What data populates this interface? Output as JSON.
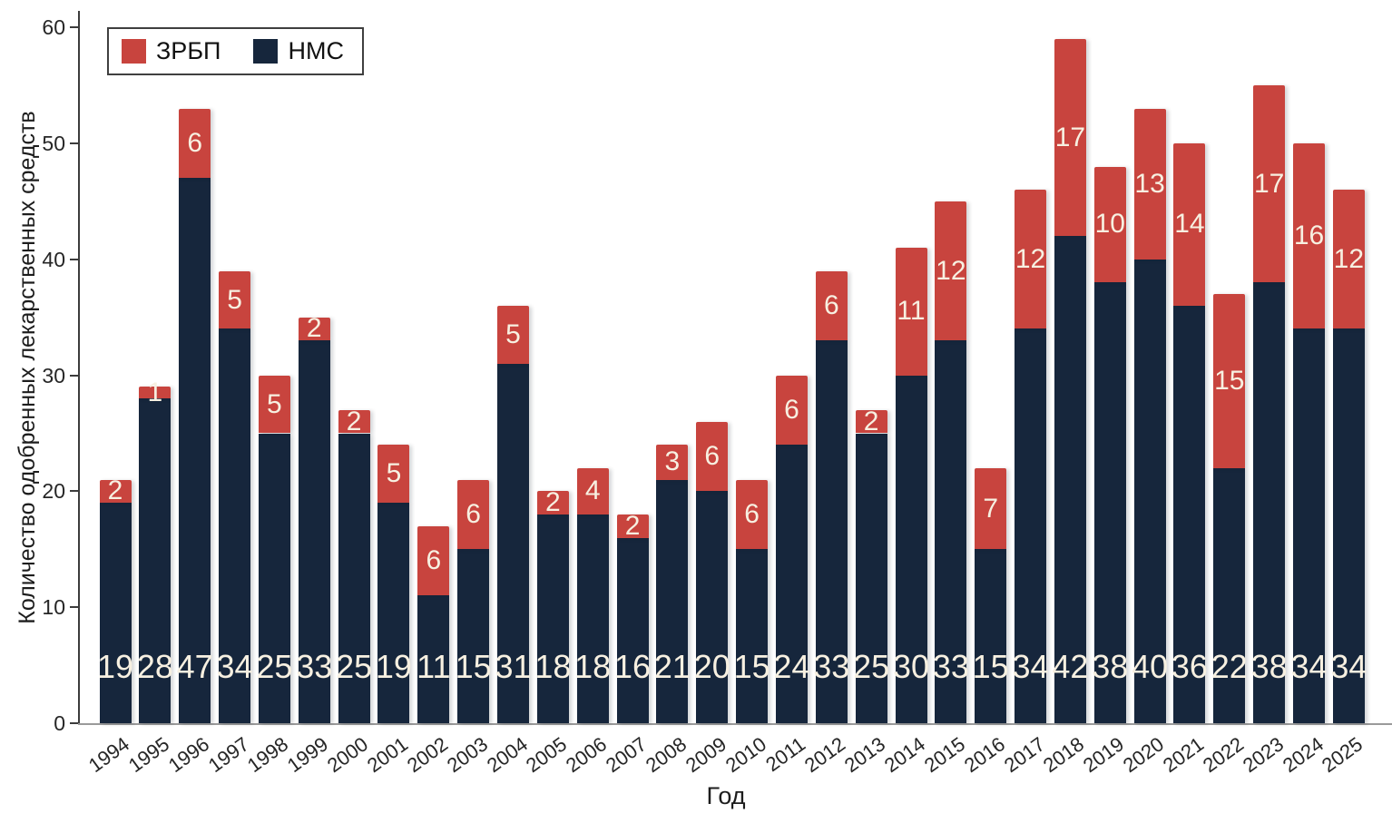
{
  "chart_data": {
    "type": "bar",
    "stacked": true,
    "title": "",
    "xlabel": "Год",
    "ylabel": "Количество одобренных лекарственных средств",
    "categories": [
      "1994",
      "1995",
      "1996",
      "1997",
      "1998",
      "1999",
      "2000",
      "2001",
      "2002",
      "2003",
      "2004",
      "2005",
      "2006",
      "2007",
      "2008",
      "2009",
      "2010",
      "2011",
      "2012",
      "2013",
      "2014",
      "2015",
      "2016",
      "2017",
      "2018",
      "2019",
      "2020",
      "2021",
      "2022",
      "2023",
      "2024",
      "2025"
    ],
    "series": [
      {
        "name": "НМС",
        "color": "#16263c",
        "values": [
          19,
          28,
          47,
          34,
          25,
          33,
          25,
          19,
          11,
          15,
          31,
          18,
          18,
          16,
          21,
          20,
          15,
          24,
          33,
          25,
          30,
          33,
          15,
          34,
          42,
          38,
          40,
          36,
          22,
          38,
          34,
          34
        ]
      },
      {
        "name": "ЗРБП",
        "color": "#c8443e",
        "values": [
          2,
          1,
          6,
          5,
          5,
          2,
          2,
          5,
          6,
          6,
          5,
          2,
          4,
          2,
          3,
          6,
          6,
          6,
          6,
          2,
          11,
          12,
          7,
          12,
          17,
          10,
          13,
          14,
          15,
          17,
          16,
          12
        ]
      }
    ],
    "legend": {
      "position": "top-left",
      "entries": [
        {
          "label": "ЗРБП",
          "color": "#c8443e"
        },
        {
          "label": "НМС",
          "color": "#16263c"
        }
      ]
    },
    "y_ticks": [
      0,
      10,
      20,
      30,
      40,
      50,
      60
    ],
    "ylim": [
      0,
      62
    ],
    "grid": false,
    "bar_label_color": "#f7f0e1"
  }
}
